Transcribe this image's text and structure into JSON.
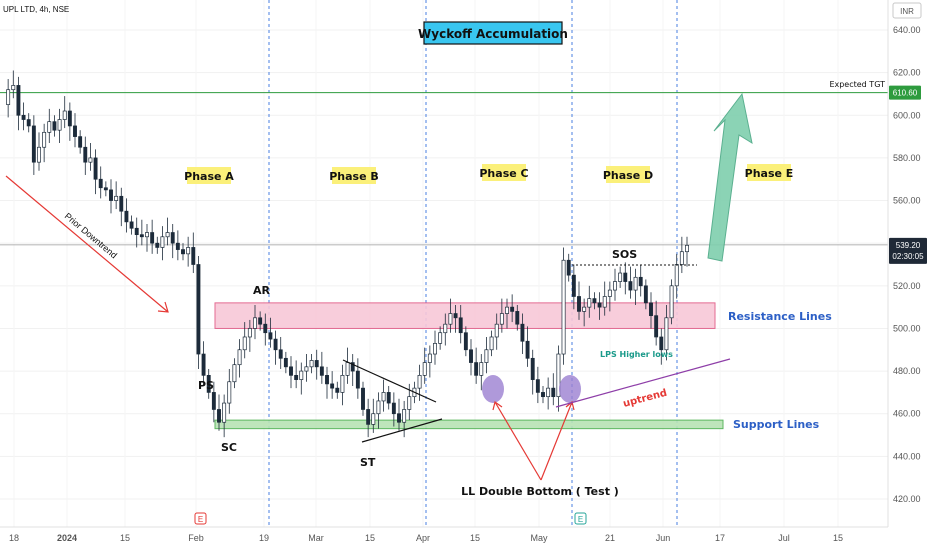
{
  "header": {
    "symbol_line": "UPL LTD, 4h, NSE"
  },
  "currency": "INR",
  "title": "Wyckoff Accumulation",
  "chart_data": {
    "type": "candlestick",
    "title": "Wyckoff Accumulation",
    "y_axis": {
      "unit": "INR",
      "range": [
        412,
        648
      ],
      "ticks": [
        640,
        620,
        600,
        580,
        560,
        540,
        520,
        500,
        480,
        460,
        440,
        420
      ]
    },
    "x_axis": {
      "ticks": [
        "18",
        "2024",
        "15",
        "Feb",
        "19",
        "Mar",
        "15",
        "Apr",
        "15",
        "May",
        "21",
        "Jun",
        "17",
        "Jul",
        "15"
      ]
    },
    "current_price": "539.20",
    "countdown": "02:30:05",
    "target": {
      "label": "Expected TGT",
      "value": "610.60"
    },
    "phases": [
      "Phase A",
      "Phase B",
      "Phase C",
      "Phase D",
      "Phase E"
    ],
    "zones": [
      {
        "name": "Resistance Lines",
        "from": 500,
        "to": 512,
        "color": "#f8c8d8"
      },
      {
        "name": "Support Lines",
        "from": 453,
        "to": 457,
        "color": "#b7e3b4"
      }
    ],
    "annotations": [
      "Prior Downtrend",
      "PS",
      "SC",
      "AR",
      "ST",
      "SOS",
      "LPS Higher lows",
      "uptrend",
      "LL Double Bottom ( Test )"
    ],
    "price_path": [
      [
        0,
        605
      ],
      [
        1,
        612
      ],
      [
        2,
        614
      ],
      [
        3,
        600
      ],
      [
        4,
        598
      ],
      [
        5,
        595
      ],
      [
        6,
        578
      ],
      [
        7,
        585
      ],
      [
        8,
        592
      ],
      [
        9,
        597
      ],
      [
        10,
        593
      ],
      [
        11,
        598
      ],
      [
        12,
        602
      ],
      [
        13,
        595
      ],
      [
        14,
        590
      ],
      [
        15,
        585
      ],
      [
        16,
        578
      ],
      [
        17,
        580
      ],
      [
        18,
        570
      ],
      [
        19,
        566
      ],
      [
        20,
        565
      ],
      [
        21,
        560
      ],
      [
        22,
        562
      ],
      [
        23,
        555
      ],
      [
        24,
        550
      ],
      [
        25,
        547
      ],
      [
        26,
        544
      ],
      [
        27,
        543
      ],
      [
        28,
        545
      ],
      [
        29,
        540
      ],
      [
        30,
        538
      ],
      [
        31,
        543
      ],
      [
        32,
        545
      ],
      [
        33,
        540
      ],
      [
        34,
        537
      ],
      [
        35,
        535
      ],
      [
        36,
        538
      ],
      [
        37,
        530
      ],
      [
        38,
        488
      ],
      [
        39,
        478
      ],
      [
        40,
        470
      ],
      [
        41,
        462
      ],
      [
        42,
        456
      ],
      [
        43,
        465
      ],
      [
        44,
        475
      ],
      [
        45,
        483
      ],
      [
        46,
        490
      ],
      [
        47,
        496
      ],
      [
        48,
        500
      ],
      [
        49,
        505
      ],
      [
        50,
        502
      ],
      [
        51,
        498
      ],
      [
        52,
        495
      ],
      [
        53,
        490
      ],
      [
        54,
        486
      ],
      [
        55,
        482
      ],
      [
        56,
        478
      ],
      [
        57,
        476
      ],
      [
        58,
        480
      ],
      [
        59,
        482
      ],
      [
        60,
        485
      ],
      [
        61,
        482
      ],
      [
        62,
        478
      ],
      [
        63,
        474
      ],
      [
        64,
        472
      ],
      [
        65,
        470
      ],
      [
        66,
        478
      ],
      [
        67,
        484
      ],
      [
        68,
        480
      ],
      [
        69,
        472
      ],
      [
        70,
        462
      ],
      [
        71,
        455
      ],
      [
        72,
        460
      ],
      [
        73,
        466
      ],
      [
        74,
        470
      ],
      [
        75,
        465
      ],
      [
        76,
        460
      ],
      [
        77,
        456
      ],
      [
        78,
        462
      ],
      [
        79,
        468
      ],
      [
        80,
        472
      ],
      [
        81,
        478
      ],
      [
        82,
        484
      ],
      [
        83,
        488
      ],
      [
        84,
        493
      ],
      [
        85,
        498
      ],
      [
        86,
        502
      ],
      [
        87,
        507
      ],
      [
        88,
        505
      ],
      [
        89,
        498
      ],
      [
        90,
        490
      ],
      [
        91,
        484
      ],
      [
        92,
        478
      ],
      [
        93,
        484
      ],
      [
        94,
        490
      ],
      [
        95,
        496
      ],
      [
        96,
        502
      ],
      [
        97,
        507
      ],
      [
        98,
        510
      ],
      [
        99,
        508
      ],
      [
        100,
        502
      ],
      [
        101,
        494
      ],
      [
        102,
        486
      ],
      [
        103,
        476
      ],
      [
        104,
        470
      ],
      [
        105,
        468
      ],
      [
        106,
        472
      ],
      [
        107,
        468
      ],
      [
        108,
        488
      ],
      [
        109,
        532
      ],
      [
        110,
        525
      ],
      [
        111,
        515
      ],
      [
        112,
        508
      ],
      [
        113,
        510
      ],
      [
        114,
        514
      ],
      [
        115,
        512
      ],
      [
        116,
        510
      ],
      [
        117,
        515
      ],
      [
        118,
        518
      ],
      [
        119,
        522
      ],
      [
        120,
        526
      ],
      [
        121,
        522
      ],
      [
        122,
        518
      ],
      [
        123,
        524
      ],
      [
        124,
        520
      ],
      [
        125,
        512
      ],
      [
        126,
        506
      ],
      [
        127,
        496
      ],
      [
        128,
        490
      ],
      [
        129,
        505
      ],
      [
        130,
        520
      ],
      [
        131,
        530
      ],
      [
        132,
        536
      ],
      [
        133,
        539
      ]
    ]
  },
  "toolbar": {
    "event_markers": [
      "E",
      "E"
    ]
  }
}
